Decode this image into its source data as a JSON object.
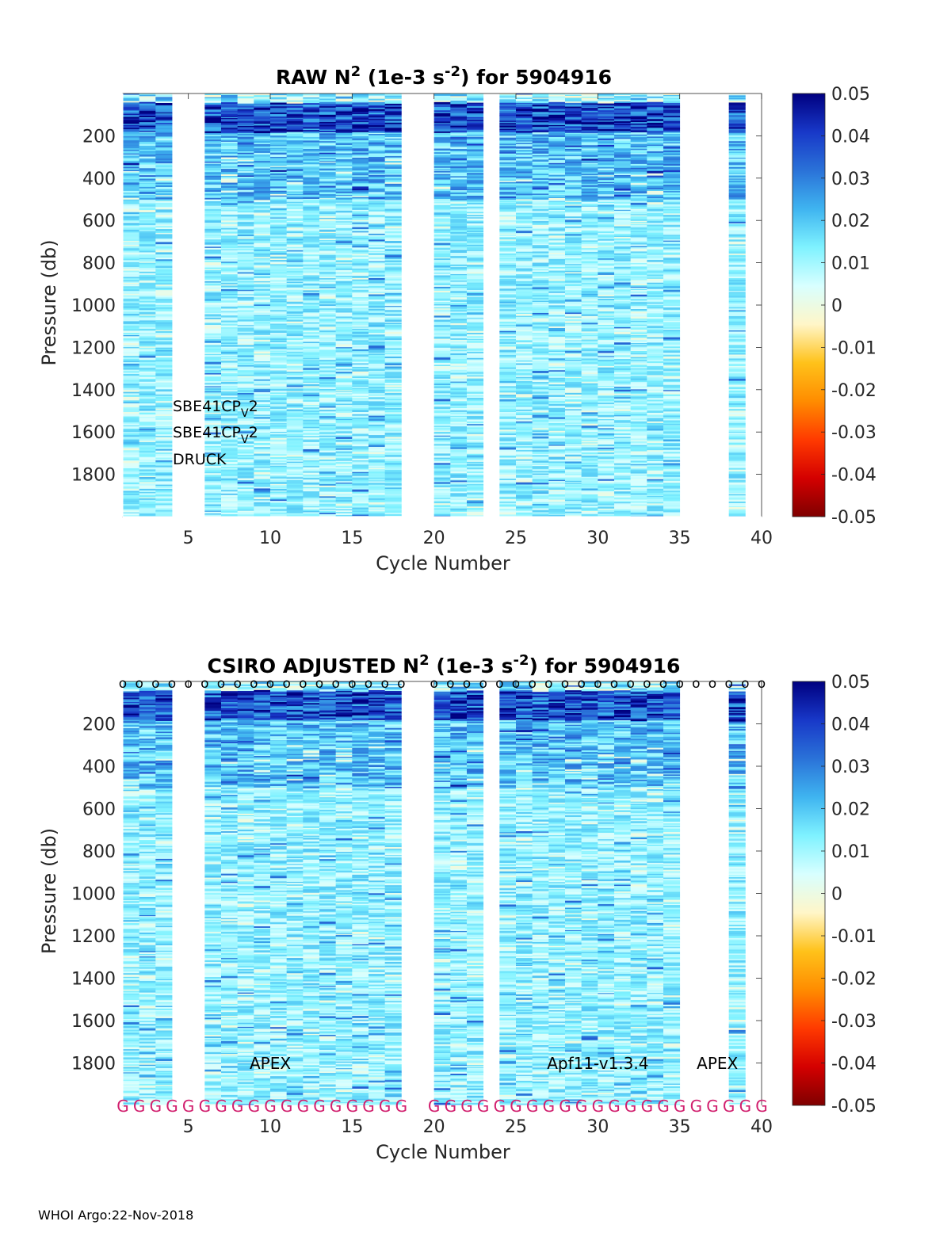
{
  "footer": "WHOI Argo:22-Nov-2018",
  "colors": {
    "scale": [
      "#7f0000",
      "#d40000",
      "#ff3a00",
      "#ff8c00",
      "#ffc21a",
      "#fff6c8",
      "#d8ffff",
      "#7ff2ff",
      "#3fb4f0",
      "#2a72d8",
      "#1838c8",
      "#000080"
    ],
    "sample_text": "#d11f6e"
  },
  "chart_data": [
    {
      "type": "heatmap",
      "title_main": "RAW N",
      "title_sup": "2",
      "title_unit_open": " (1e-3 s",
      "title_unit_sup": "-2",
      "title_tail": ") for 5904916",
      "xlabel": "Cycle Number",
      "ylabel": "Pressure (db)",
      "xlim": [
        1,
        40
      ],
      "ylim": [
        2000,
        0
      ],
      "xticks": [
        "5",
        "10",
        "15",
        "20",
        "25",
        "30",
        "35",
        "40"
      ],
      "yticks": [
        "200",
        "400",
        "600",
        "800",
        "1000",
        "1200",
        "1400",
        "1600",
        "1800"
      ],
      "colorbar_ticks": [
        "0.05",
        "0.04",
        "0.03",
        "0.02",
        "0.01",
        "0",
        "-0.01",
        "-0.02",
        "-0.03",
        "-0.04",
        "-0.05"
      ],
      "clim": [
        -0.05,
        0.05
      ],
      "profiles_cycles": [
        1,
        2,
        3,
        6,
        7,
        8,
        9,
        10,
        11,
        12,
        13,
        14,
        15,
        16,
        17,
        20,
        21,
        22,
        24,
        25,
        26,
        27,
        28,
        29,
        30,
        31,
        32,
        33,
        34,
        38
      ],
      "annotations": [
        {
          "text": "SBE41CP",
          "sub": "V",
          "tail": "2"
        },
        {
          "text": "SBE41CP",
          "sub": "V",
          "tail": "2"
        },
        {
          "text": "DRUCK",
          "sub": "",
          "tail": ""
        }
      ]
    },
    {
      "type": "heatmap",
      "title_main": "CSIRO  ADJUSTED N",
      "title_sup": "2",
      "title_unit_open": " (1e-3 s",
      "title_unit_sup": "-2",
      "title_tail": ") for 5904916",
      "xlabel": "Cycle Number",
      "ylabel": "Pressure (db)",
      "xlim": [
        1,
        40
      ],
      "ylim": [
        2000,
        0
      ],
      "xticks": [
        "5",
        "10",
        "15",
        "20",
        "25",
        "30",
        "35",
        "40"
      ],
      "yticks": [
        "200",
        "400",
        "600",
        "800",
        "1000",
        "1200",
        "1400",
        "1600",
        "1800"
      ],
      "colorbar_ticks": [
        "0.05",
        "0.04",
        "0.03",
        "0.02",
        "0.01",
        "0",
        "-0.01",
        "-0.02",
        "-0.03",
        "-0.04",
        "-0.05"
      ],
      "clim": [
        -0.05,
        0.05
      ],
      "profiles_cycles": [
        1,
        2,
        3,
        6,
        7,
        8,
        9,
        10,
        11,
        12,
        13,
        14,
        15,
        16,
        17,
        20,
        21,
        22,
        24,
        25,
        26,
        27,
        28,
        29,
        30,
        31,
        32,
        33,
        34,
        38
      ],
      "top_marker": "o",
      "top_marker_cycles": [
        1,
        2,
        3,
        4,
        5,
        6,
        7,
        8,
        9,
        10,
        11,
        12,
        13,
        14,
        15,
        16,
        17,
        18,
        20,
        21,
        22,
        23,
        24,
        25,
        26,
        27,
        28,
        29,
        30,
        31,
        32,
        33,
        34,
        35,
        36,
        37,
        38,
        39,
        40
      ],
      "bottom_marker": "G",
      "bottom_marker_cycles": [
        1,
        2,
        3,
        4,
        5,
        6,
        7,
        8,
        9,
        10,
        11,
        12,
        13,
        14,
        15,
        16,
        17,
        18,
        20,
        21,
        22,
        23,
        24,
        25,
        26,
        27,
        28,
        29,
        30,
        31,
        32,
        33,
        34,
        35,
        36,
        37,
        38,
        39,
        40
      ],
      "annotations": [
        {
          "text": "APEX",
          "cycle": 10
        },
        {
          "text": "Apf11-v1.3.4",
          "cycle": 30
        },
        {
          "text": "APEX",
          "cycle": 37.3
        }
      ]
    }
  ]
}
